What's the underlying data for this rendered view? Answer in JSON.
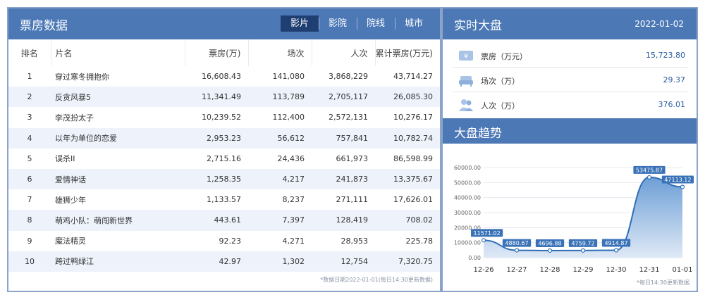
{
  "boxoffice": {
    "title": "票房数据",
    "tabs": [
      "影片",
      "影院",
      "院线",
      "城市"
    ],
    "columns": [
      "排名",
      "片名",
      "票房(万)",
      "场次",
      "人次",
      "累计票房(万元)"
    ],
    "rows": [
      {
        "rank": "1",
        "name": "穿过寒冬拥抱你",
        "box": "16,608.43",
        "shows": "141,080",
        "people": "3,868,229",
        "total": "43,714.27"
      },
      {
        "rank": "2",
        "name": "反贪风暴5",
        "box": "11,341.49",
        "shows": "113,789",
        "people": "2,705,117",
        "total": "26,085.30"
      },
      {
        "rank": "3",
        "name": "李茂扮太子",
        "box": "10,239.52",
        "shows": "112,400",
        "people": "2,572,131",
        "total": "10,276.17"
      },
      {
        "rank": "4",
        "name": "以年为单位的恋爱",
        "box": "2,953.23",
        "shows": "56,612",
        "people": "757,841",
        "total": "10,782.74"
      },
      {
        "rank": "5",
        "name": "误杀II",
        "box": "2,715.16",
        "shows": "24,436",
        "people": "661,973",
        "total": "86,598.99"
      },
      {
        "rank": "6",
        "name": "爱情神话",
        "box": "1,258.35",
        "shows": "4,217",
        "people": "241,873",
        "total": "13,375.67"
      },
      {
        "rank": "7",
        "name": "雄狮少年",
        "box": "1,133.57",
        "shows": "8,237",
        "people": "271,111",
        "total": "17,626.01"
      },
      {
        "rank": "8",
        "name": "萌鸡小队：萌闯新世界",
        "box": "443.61",
        "shows": "7,397",
        "people": "128,419",
        "total": "708.02"
      },
      {
        "rank": "9",
        "name": "魔法精灵",
        "box": "92.23",
        "shows": "4,271",
        "people": "28,953",
        "total": "225.78"
      },
      {
        "rank": "10",
        "name": "跨过鸭绿江",
        "box": "42.97",
        "shows": "1,302",
        "people": "12,754",
        "total": "7,320.75"
      }
    ],
    "footnote": "*数据日期2022-01-01(每日14:30更新数据)"
  },
  "realtime": {
    "title": "实时大盘",
    "date": "2022-01-02",
    "items": [
      {
        "label": "票房（万元）",
        "value": "15,723.80",
        "icon": "yen-ticket-icon"
      },
      {
        "label": "场次（万）",
        "value": "29.37",
        "icon": "seat-icon"
      },
      {
        "label": "人次（万）",
        "value": "376.01",
        "icon": "people-icon"
      }
    ]
  },
  "trend": {
    "title": "大盘趋势",
    "footnote": "*每日14:30更新数据"
  },
  "chart_data": {
    "type": "area",
    "categories": [
      "12-26",
      "12-27",
      "12-28",
      "12-29",
      "12-30",
      "12-31",
      "01-01"
    ],
    "values": [
      11571.02,
      4880.67,
      4696.88,
      4759.72,
      4914.87,
      53475.87,
      47113.12
    ],
    "labels": [
      "11571.02",
      "4880.67",
      "4696.88",
      "4759.72",
      "4914.87",
      "53475.87",
      "47113.12"
    ],
    "yticks": [
      "60000.00",
      "50000.00",
      "40000.00",
      "30000.00",
      "20000.00",
      "10000.00",
      "0.00"
    ],
    "ylim": [
      0,
      60000
    ],
    "grid": true,
    "colors": {
      "line": "#2f6fb8",
      "fill_top": "#6d9fd6",
      "fill_bottom": "#dfe9f6",
      "label_bg": "#3a72b8"
    }
  }
}
